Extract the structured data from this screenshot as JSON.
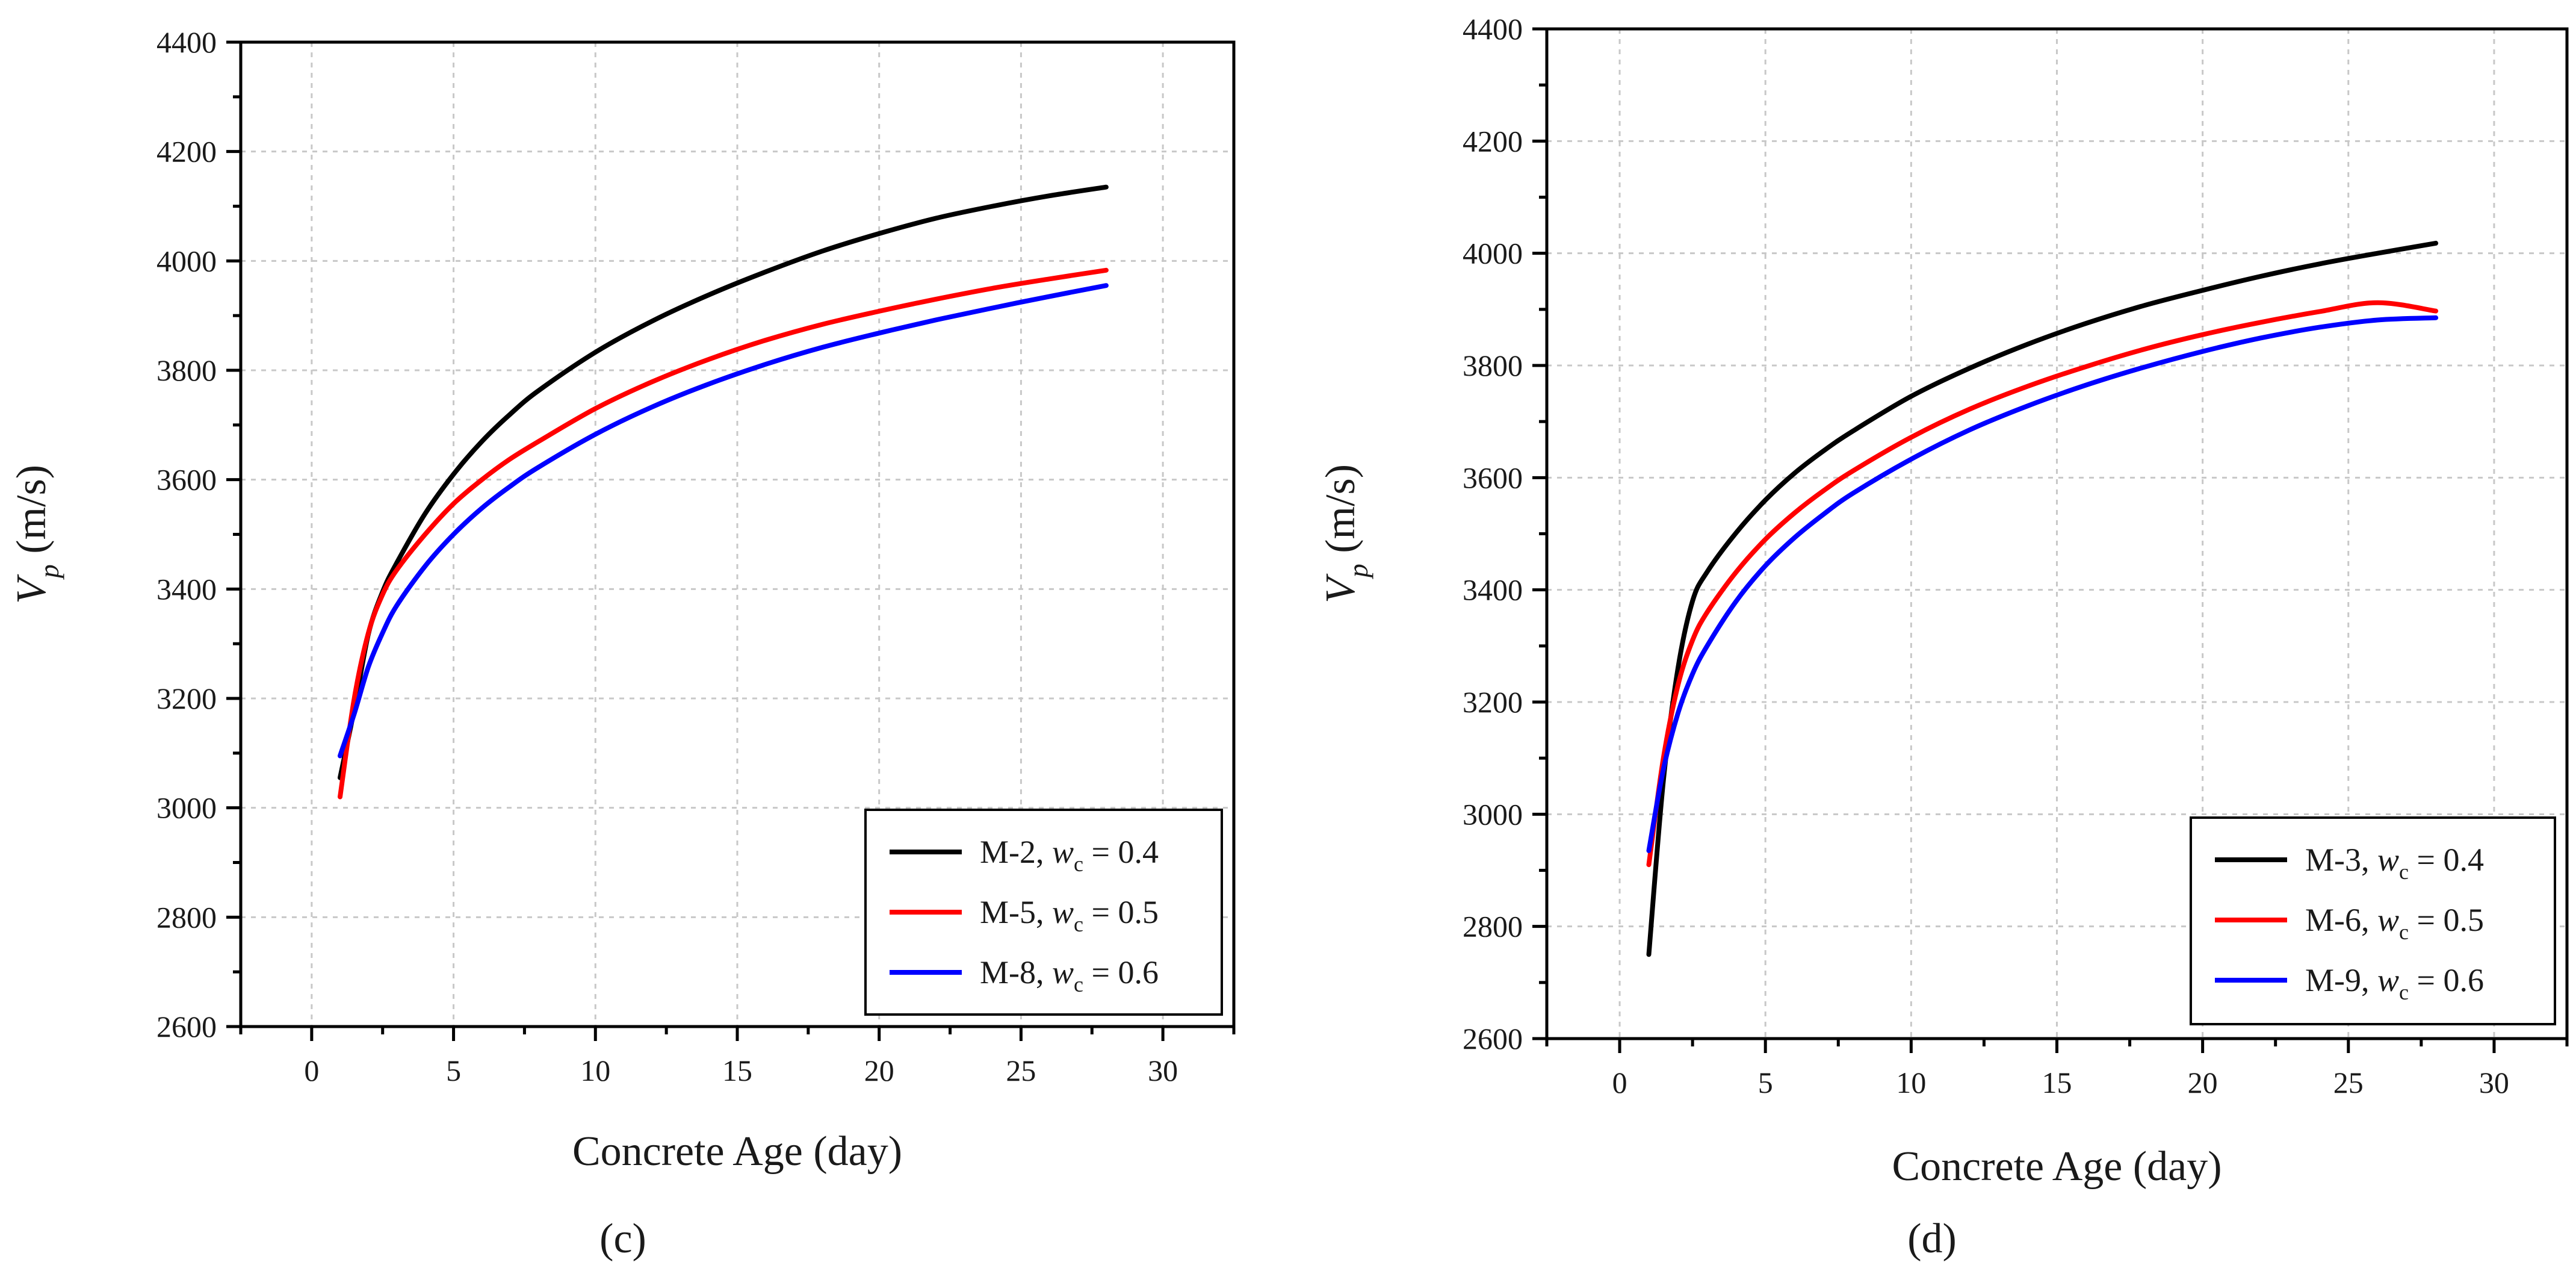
{
  "chart_data": [
    {
      "type": "line",
      "panel": "c",
      "panel_label": "(c)",
      "xlabel": "Concrete Age (day)",
      "ylabel_main": "V",
      "ylabel_sub": "p",
      "ylabel_unit": " (m/s)",
      "xlim": [
        -2.5,
        32.5
      ],
      "ylim": [
        2600,
        4400
      ],
      "xticks": [
        0,
        5,
        10,
        15,
        20,
        25,
        30
      ],
      "yticks": [
        2600,
        2800,
        3000,
        3200,
        3400,
        3600,
        3800,
        4000,
        4200,
        4400
      ],
      "grid": true,
      "legend_position": "bottom-right",
      "x": [
        1,
        1.5,
        2,
        2.5,
        3,
        4,
        5,
        6,
        7,
        8,
        10,
        12,
        14,
        16,
        18,
        20,
        22,
        24,
        26,
        28
      ],
      "series": [
        {
          "name_prefix": "M-2, ",
          "name_var": "w",
          "name_sub": "c",
          "name_suffix": " = 0.4",
          "color": "#000000",
          "values": [
            3055,
            3180,
            3318,
            3395,
            3448,
            3538,
            3610,
            3670,
            3720,
            3763,
            3833,
            3890,
            3938,
            3980,
            4018,
            4050,
            4078,
            4100,
            4119,
            4135
          ]
        },
        {
          "name_prefix": "M-5, ",
          "name_var": "w",
          "name_sub": "c",
          "name_suffix": " = 0.5",
          "color": "#ff0000",
          "values": [
            3020,
            3200,
            3320,
            3390,
            3435,
            3500,
            3556,
            3600,
            3638,
            3670,
            3730,
            3779,
            3820,
            3855,
            3884,
            3908,
            3930,
            3950,
            3967,
            3983
          ]
        },
        {
          "name_prefix": "M-8, ",
          "name_var": "w",
          "name_sub": "c",
          "name_suffix": " = 0.6",
          "color": "#0000ff",
          "values": [
            3095,
            3172,
            3258,
            3320,
            3370,
            3442,
            3500,
            3548,
            3588,
            3623,
            3683,
            3733,
            3775,
            3811,
            3842,
            3868,
            3892,
            3914,
            3935,
            3955
          ]
        }
      ]
    },
    {
      "type": "line",
      "panel": "d",
      "panel_label": "(d)",
      "xlabel": "Concrete Age (day)",
      "ylabel_main": "V",
      "ylabel_sub": "p",
      "ylabel_unit": " (m/s)",
      "xlim": [
        -2.5,
        32.5
      ],
      "ylim": [
        2600,
        4400
      ],
      "xticks": [
        0,
        5,
        10,
        15,
        20,
        25,
        30
      ],
      "yticks": [
        2600,
        2800,
        3000,
        3200,
        3400,
        3600,
        3800,
        4000,
        4200,
        4400
      ],
      "grid": true,
      "legend_position": "bottom-right",
      "x": [
        1,
        1.5,
        2,
        2.5,
        3,
        4,
        5,
        6,
        7,
        8,
        10,
        12,
        14,
        16,
        18,
        20,
        22,
        24,
        26,
        28
      ],
      "series": [
        {
          "name_prefix": "M-3, ",
          "name_var": "w",
          "name_sub": "c",
          "name_suffix": " = 0.4",
          "color": "#000000",
          "values": [
            2750,
            3060,
            3260,
            3380,
            3432,
            3502,
            3560,
            3608,
            3648,
            3683,
            3745,
            3795,
            3838,
            3875,
            3907,
            3934,
            3959,
            3981,
            4000,
            4018
          ]
        },
        {
          "name_prefix": "M-6, ",
          "name_var": "w",
          "name_sub": "c",
          "name_suffix": " = 0.5",
          "color": "#ff0000",
          "values": [
            2910,
            3100,
            3230,
            3310,
            3360,
            3432,
            3490,
            3537,
            3577,
            3612,
            3672,
            3722,
            3763,
            3798,
            3829,
            3855,
            3877,
            3896,
            3912,
            3897
          ]
        },
        {
          "name_prefix": "M-9, ",
          "name_var": "w",
          "name_sub": "c",
          "name_suffix": " = 0.6",
          "color": "#0000ff",
          "values": [
            2935,
            3080,
            3180,
            3250,
            3300,
            3380,
            3443,
            3493,
            3535,
            3572,
            3633,
            3685,
            3728,
            3765,
            3797,
            3825,
            3849,
            3868,
            3881,
            3885
          ]
        }
      ]
    }
  ]
}
